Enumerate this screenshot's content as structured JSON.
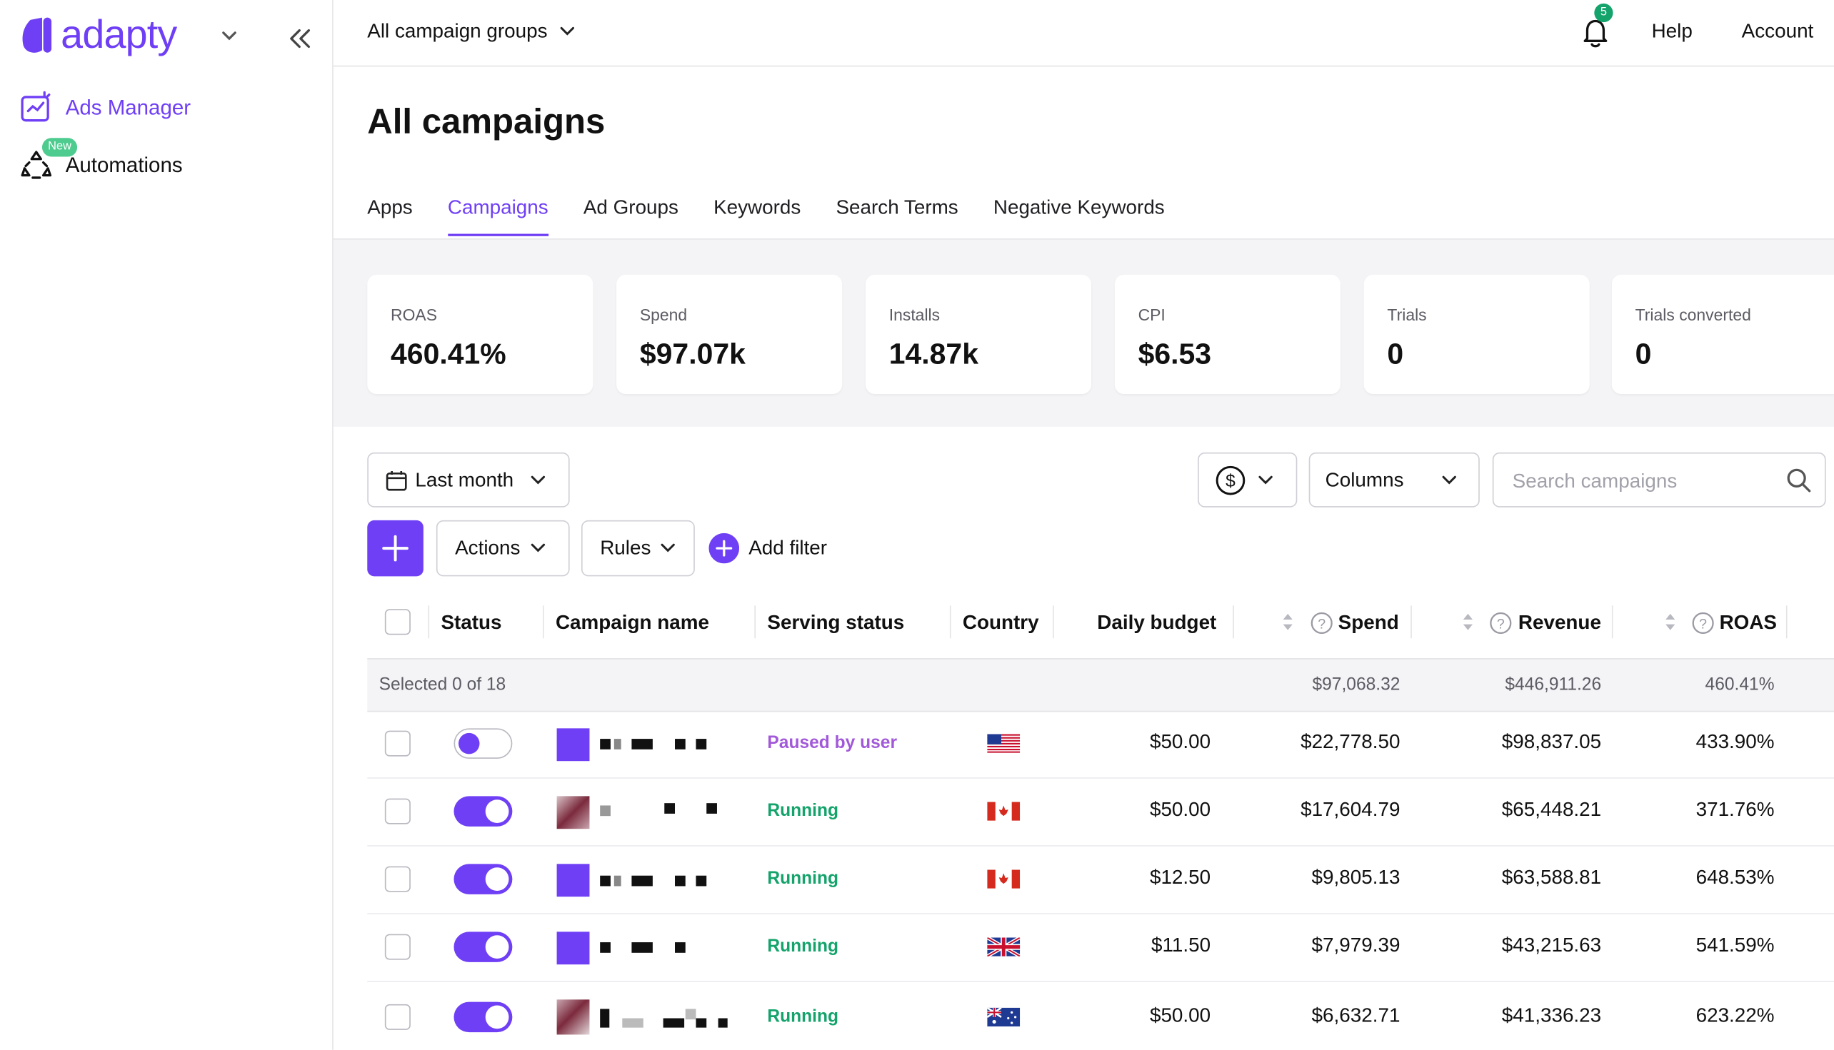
{
  "brand": {
    "name": "adapty",
    "accent": "#6f3ff5"
  },
  "sidebar": {
    "items": [
      {
        "label": "Ads Manager",
        "icon": "ads-manager-icon",
        "active": true
      },
      {
        "label": "Automations",
        "icon": "automations-icon",
        "badge": "New"
      }
    ]
  },
  "topbar": {
    "group_select": "All campaign groups",
    "notifications_count": "5",
    "help": "Help",
    "account": "Account"
  },
  "page": {
    "title": "All campaigns",
    "tabs": [
      "Apps",
      "Campaigns",
      "Ad Groups",
      "Keywords",
      "Search Terms",
      "Negative Keywords"
    ],
    "active_tab": "Campaigns"
  },
  "stats": [
    {
      "label": "ROAS",
      "value": "460.41%"
    },
    {
      "label": "Spend",
      "value": "$97.07k"
    },
    {
      "label": "Installs",
      "value": "14.87k"
    },
    {
      "label": "CPI",
      "value": "$6.53"
    },
    {
      "label": "Trials",
      "value": "0"
    },
    {
      "label": "Trials converted",
      "value": "0"
    }
  ],
  "controls": {
    "date_range": "Last month",
    "currency_icon": "dollar-circle-icon",
    "columns": "Columns",
    "search_placeholder": "Search campaigns",
    "actions": "Actions",
    "rules": "Rules",
    "add_filter": "Add filter"
  },
  "table": {
    "columns": [
      "Status",
      "Campaign name",
      "Serving status",
      "Country",
      "Daily budget",
      "Spend",
      "Revenue",
      "ROAS"
    ],
    "summary": {
      "selected": "Selected 0 of 18",
      "spend": "$97,068.32",
      "revenue": "$446,911.26",
      "roas": "460.41%"
    },
    "rows": [
      {
        "enabled": false,
        "serving_status": "Paused by user",
        "status_color": "#a259d9",
        "country": "us-flag-icon",
        "daily_budget": "$50.00",
        "spend": "$22,778.50",
        "revenue": "$98,837.05",
        "roas": "433.90%"
      },
      {
        "enabled": true,
        "serving_status": "Running",
        "status_color": "#14a36b",
        "country": "ca-flag-icon",
        "daily_budget": "$50.00",
        "spend": "$17,604.79",
        "revenue": "$65,448.21",
        "roas": "371.76%"
      },
      {
        "enabled": true,
        "serving_status": "Running",
        "status_color": "#14a36b",
        "country": "ca-flag-icon",
        "daily_budget": "$12.50",
        "spend": "$9,805.13",
        "revenue": "$63,588.81",
        "roas": "648.53%"
      },
      {
        "enabled": true,
        "serving_status": "Running",
        "status_color": "#14a36b",
        "country": "gb-flag-icon",
        "daily_budget": "$11.50",
        "spend": "$7,979.39",
        "revenue": "$43,215.63",
        "roas": "541.59%"
      },
      {
        "enabled": true,
        "serving_status": "Running",
        "status_color": "#14a36b",
        "country": "au-flag-icon",
        "daily_budget": "$50.00",
        "spend": "$6,632.71",
        "revenue": "$41,336.23",
        "roas": "623.22%"
      }
    ]
  }
}
